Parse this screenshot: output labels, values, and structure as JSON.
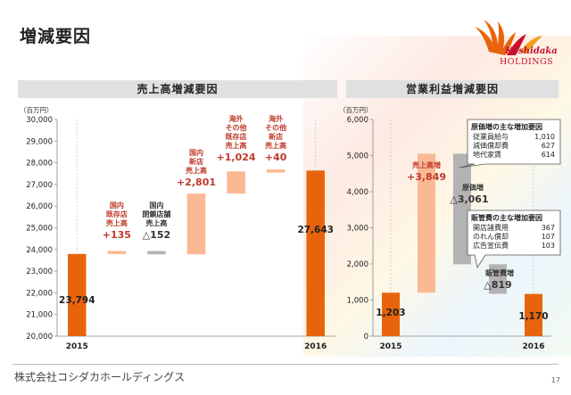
{
  "page_title": "増減要因",
  "logo": {
    "name": "Koshidaka",
    "sub": "HOLDINGS"
  },
  "footer": "株式会社コシダカホールディングス",
  "page_number": "17",
  "chart_data": [
    {
      "type": "waterfall",
      "title": "売上高増減要因",
      "unit": "（百万円）",
      "ylim": [
        20000,
        30000
      ],
      "yticks": [
        "30,000",
        "29,000",
        "28,000",
        "27,000",
        "26,000",
        "25,000",
        "24,000",
        "23,000",
        "22,000",
        "21,000",
        "20,000"
      ],
      "ytick_values": [
        30000,
        29000,
        28000,
        27000,
        26000,
        25000,
        24000,
        23000,
        22000,
        21000,
        20000
      ],
      "steps": [
        {
          "label": "2015",
          "kind": "total",
          "value": 23794,
          "value_label": "23,794"
        },
        {
          "label": "国内\n既存店\n売上高",
          "kind": "increase",
          "value": 135,
          "value_label": "+135"
        },
        {
          "label": "国内\n閉鎖店舗\n売上高",
          "kind": "decrease",
          "value": -152,
          "value_label": "△152"
        },
        {
          "label": "国内\n新店\n売上高",
          "kind": "increase",
          "value": 2801,
          "value_label": "+2,801"
        },
        {
          "label": "海外\nその他\n既存店\n売上高",
          "kind": "increase",
          "value": 1024,
          "value_label": "+1,024"
        },
        {
          "label": "海外\nその他\n新店\n売上高",
          "kind": "increase",
          "value": 40,
          "value_label": "+40"
        },
        {
          "label": "2016",
          "kind": "total",
          "value": 27643,
          "value_label": "27,643"
        }
      ],
      "colors": {
        "total": "#e8640c",
        "increase": "#fbb894",
        "decrease": "#b3b3b3",
        "label": "#c0392b"
      }
    },
    {
      "type": "waterfall",
      "title": "営業利益増減要因",
      "unit": "（百万円）",
      "ylim": [
        0,
        6000
      ],
      "yticks": [
        "6,000",
        "5,000",
        "4,000",
        "3,000",
        "2,000",
        "1,000",
        "0"
      ],
      "ytick_values": [
        6000,
        5000,
        4000,
        3000,
        2000,
        1000,
        0
      ],
      "steps": [
        {
          "label": "2015",
          "kind": "total",
          "value": 1203,
          "value_label": "1,203"
        },
        {
          "label": "売上高増",
          "kind": "increase",
          "value": 3849,
          "value_label": "+3,849"
        },
        {
          "label": "原価増",
          "kind": "decrease",
          "value": -3061,
          "value_label": "△3,061"
        },
        {
          "label": "販管費増",
          "kind": "decrease",
          "value": -819,
          "value_label": "△819"
        },
        {
          "label": "2016",
          "kind": "total",
          "value": 1170,
          "value_label": "1,170"
        }
      ],
      "colors": {
        "total": "#e8640c",
        "increase": "#fbb894",
        "decrease": "#b3b3b3",
        "label": "#c0392b"
      },
      "callouts": [
        {
          "title": "原価増の主な増加要因",
          "items": [
            {
              "name": "従業員給与",
              "value": "1,010"
            },
            {
              "name": "減価償却費",
              "value": "627"
            },
            {
              "name": "地代家賃",
              "value": "614"
            }
          ]
        },
        {
          "title": "販管費の主な増加要因",
          "items": [
            {
              "name": "開店諸費用",
              "value": "367"
            },
            {
              "name": "のれん償却",
              "value": "107"
            },
            {
              "name": "広告宣伝費",
              "value": "103"
            }
          ]
        }
      ]
    }
  ]
}
